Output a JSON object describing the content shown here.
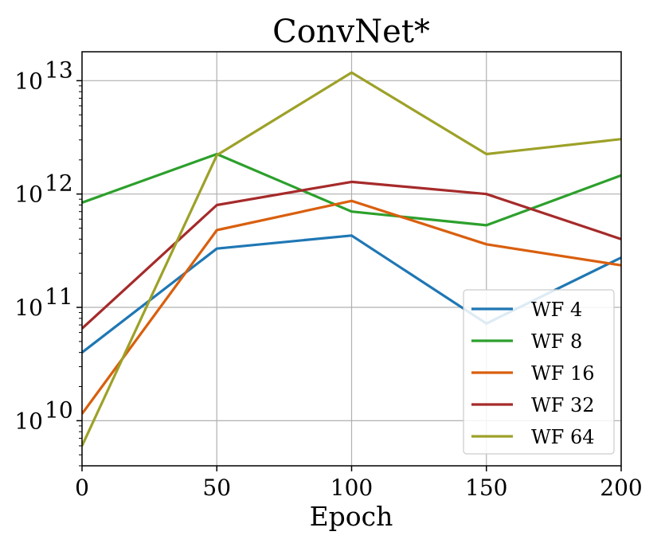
{
  "chart_data": {
    "type": "line",
    "title": "ConvNet*",
    "xlabel": "Epoch",
    "ylabel": "",
    "x": [
      0,
      50,
      100,
      150,
      200
    ],
    "xlim": [
      0,
      200
    ],
    "xticks": [
      0,
      50,
      100,
      150,
      200
    ],
    "xtick_labels": [
      "0",
      "50",
      "100",
      "150",
      "200"
    ],
    "yscale": "log",
    "ylim": [
      4000000000.0,
      18000000000000.0
    ],
    "yticks": [
      10000000000.0,
      100000000000.0,
      1000000000000.0,
      10000000000000.0
    ],
    "ytick_labels": [
      {
        "base": "10",
        "exp": "10"
      },
      {
        "base": "10",
        "exp": "11"
      },
      {
        "base": "10",
        "exp": "12"
      },
      {
        "base": "10",
        "exp": "13"
      }
    ],
    "grid": true,
    "legend_position": "lower-right",
    "series": [
      {
        "name": "WF 4",
        "color": "#1f77b4",
        "values": [
          40000000000.0,
          330000000000.0,
          430000000000.0,
          72000000000.0,
          275000000000.0
        ]
      },
      {
        "name": "WF 8",
        "color": "#2ca02c",
        "values": [
          840000000000.0,
          2250000000000.0,
          700000000000.0,
          530000000000.0,
          1460000000000.0
        ]
      },
      {
        "name": "WF 16",
        "color": "#d95f0e",
        "values": [
          11500000000.0,
          480000000000.0,
          870000000000.0,
          360000000000.0,
          235000000000.0
        ]
      },
      {
        "name": "WF 32",
        "color": "#a62a2a",
        "values": [
          65000000000.0,
          800000000000.0,
          1280000000000.0,
          1000000000000.0,
          400000000000.0
        ]
      },
      {
        "name": "WF 64",
        "color": "#9da128",
        "values": [
          6000000000.0,
          2200000000000.0,
          11800000000000.0,
          2250000000000.0,
          3050000000000.0
        ]
      }
    ]
  }
}
